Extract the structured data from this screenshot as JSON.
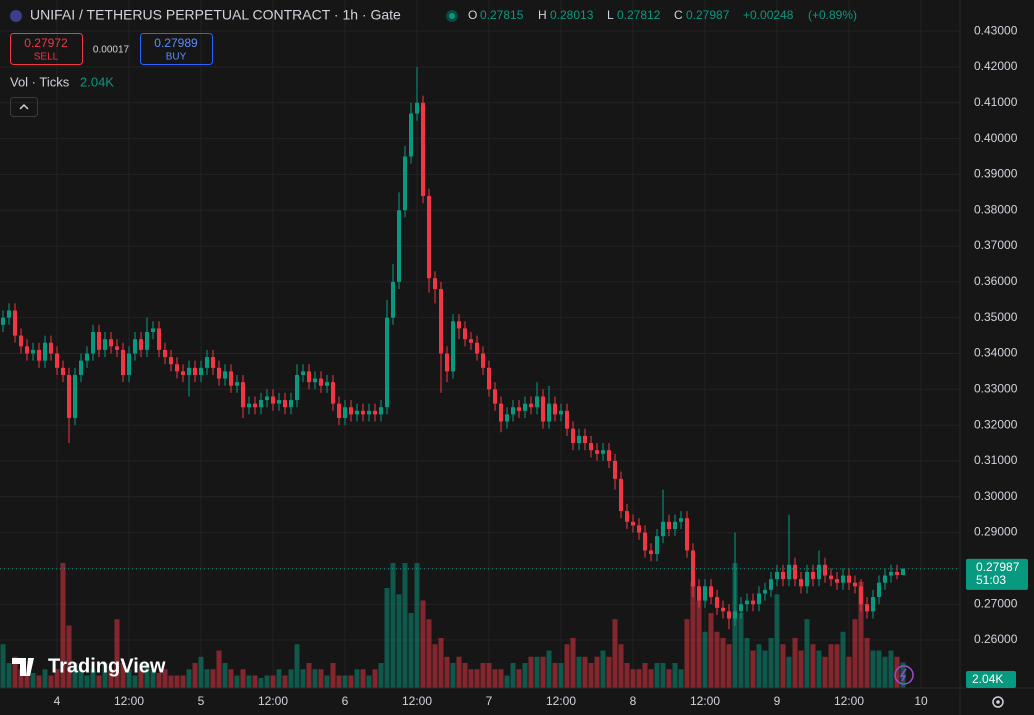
{
  "chart_data": {
    "type": "candlestick",
    "title": "UNIFAI / TETHERUS PERPETUAL CONTRACT · 1h · Gate",
    "ohlc_labels": [
      "O",
      "H",
      "L",
      "C"
    ],
    "change": "+0.00248",
    "change_pct": "(+0.89%)",
    "open": [
      0.348,
      0.35,
      0.352,
      0.345,
      0.342,
      0.34,
      0.341,
      0.338,
      0.343,
      0.34,
      0.336,
      0.334,
      0.322,
      0.334,
      0.338,
      0.34,
      0.346,
      0.341,
      0.344,
      0.342,
      0.341,
      0.334,
      0.34,
      0.344,
      0.341,
      0.346,
      0.347,
      0.341,
      0.339,
      0.337,
      0.335,
      0.334,
      0.336,
      0.334,
      0.336,
      0.339,
      0.336,
      0.333,
      0.335,
      0.331,
      0.332,
      0.325,
      0.326,
      0.325,
      0.327,
      0.328,
      0.326,
      0.327,
      0.325,
      0.327,
      0.334,
      0.335,
      0.332,
      0.333,
      0.331,
      0.332,
      0.326,
      0.322,
      0.325,
      0.323,
      0.324,
      0.323,
      0.324,
      0.323,
      0.325,
      0.35,
      0.36,
      0.38,
      0.395,
      0.407,
      0.41,
      0.384,
      0.361,
      0.358,
      0.34,
      0.335,
      0.349,
      0.347,
      0.344,
      0.343,
      0.34,
      0.336,
      0.33,
      0.326,
      0.321,
      0.323,
      0.325,
      0.324,
      0.326,
      0.325,
      0.328,
      0.321,
      0.326,
      0.323,
      0.324,
      0.319,
      0.315,
      0.317,
      0.315,
      0.313,
      0.312,
      0.313,
      0.31,
      0.305,
      0.296,
      0.293,
      0.292,
      0.29,
      0.285,
      0.284,
      0.289,
      0.293,
      0.291,
      0.293,
      0.294,
      0.285,
      0.275,
      0.271,
      0.275,
      0.272,
      0.269,
      0.268,
      0.266,
      0.268,
      0.27,
      0.271,
      0.27,
      0.273,
      0.274,
      0.277,
      0.279,
      0.277,
      0.281,
      0.277,
      0.275,
      0.279,
      0.277,
      0.281,
      0.278,
      0.277,
      0.276,
      0.278,
      0.276,
      0.275,
      0.27,
      0.268,
      0.272,
      0.276,
      0.278,
      0.279,
      0.27815
    ],
    "high": [
      0.352,
      0.354,
      0.354,
      0.347,
      0.344,
      0.343,
      0.343,
      0.345,
      0.345,
      0.342,
      0.338,
      0.336,
      0.336,
      0.34,
      0.342,
      0.348,
      0.348,
      0.346,
      0.346,
      0.344,
      0.343,
      0.342,
      0.346,
      0.346,
      0.35,
      0.349,
      0.349,
      0.343,
      0.341,
      0.339,
      0.337,
      0.338,
      0.338,
      0.338,
      0.341,
      0.341,
      0.338,
      0.337,
      0.337,
      0.334,
      0.334,
      0.328,
      0.328,
      0.329,
      0.33,
      0.33,
      0.329,
      0.329,
      0.329,
      0.337,
      0.337,
      0.337,
      0.335,
      0.335,
      0.334,
      0.334,
      0.328,
      0.327,
      0.327,
      0.326,
      0.326,
      0.326,
      0.326,
      0.327,
      0.355,
      0.365,
      0.385,
      0.398,
      0.41,
      0.42,
      0.412,
      0.386,
      0.363,
      0.36,
      0.342,
      0.351,
      0.351,
      0.349,
      0.346,
      0.345,
      0.342,
      0.338,
      0.332,
      0.328,
      0.325,
      0.327,
      0.327,
      0.328,
      0.328,
      0.332,
      0.33,
      0.331,
      0.328,
      0.326,
      0.326,
      0.321,
      0.319,
      0.319,
      0.317,
      0.315,
      0.315,
      0.315,
      0.312,
      0.307,
      0.298,
      0.295,
      0.294,
      0.292,
      0.287,
      0.291,
      0.302,
      0.295,
      0.295,
      0.296,
      0.296,
      0.287,
      0.277,
      0.277,
      0.277,
      0.274,
      0.271,
      0.27,
      0.29,
      0.272,
      0.273,
      0.273,
      0.275,
      0.276,
      0.279,
      0.281,
      0.281,
      0.295,
      0.283,
      0.279,
      0.281,
      0.281,
      0.285,
      0.283,
      0.28,
      0.279,
      0.28,
      0.28,
      0.278,
      0.277,
      0.272,
      0.274,
      0.278,
      0.28,
      0.281,
      0.281,
      0.28013
    ],
    "low": [
      0.346,
      0.348,
      0.343,
      0.34,
      0.338,
      0.338,
      0.336,
      0.336,
      0.338,
      0.334,
      0.332,
      0.315,
      0.32,
      0.332,
      0.336,
      0.338,
      0.339,
      0.339,
      0.34,
      0.339,
      0.332,
      0.332,
      0.338,
      0.339,
      0.339,
      0.344,
      0.339,
      0.337,
      0.335,
      0.333,
      0.332,
      0.328,
      0.332,
      0.332,
      0.334,
      0.334,
      0.331,
      0.331,
      0.329,
      0.329,
      0.322,
      0.323,
      0.323,
      0.323,
      0.325,
      0.324,
      0.324,
      0.323,
      0.323,
      0.325,
      0.332,
      0.33,
      0.33,
      0.329,
      0.329,
      0.324,
      0.32,
      0.32,
      0.321,
      0.321,
      0.321,
      0.321,
      0.321,
      0.321,
      0.323,
      0.348,
      0.358,
      0.378,
      0.393,
      0.405,
      0.382,
      0.357,
      0.354,
      0.329,
      0.332,
      0.333,
      0.344,
      0.342,
      0.341,
      0.338,
      0.334,
      0.328,
      0.324,
      0.318,
      0.319,
      0.321,
      0.322,
      0.322,
      0.323,
      0.323,
      0.319,
      0.319,
      0.321,
      0.321,
      0.317,
      0.313,
      0.313,
      0.313,
      0.311,
      0.31,
      0.31,
      0.308,
      0.302,
      0.294,
      0.291,
      0.29,
      0.288,
      0.283,
      0.282,
      0.282,
      0.287,
      0.289,
      0.289,
      0.291,
      0.283,
      0.272,
      0.269,
      0.269,
      0.27,
      0.267,
      0.266,
      0.263,
      0.264,
      0.266,
      0.268,
      0.268,
      0.268,
      0.271,
      0.272,
      0.275,
      0.275,
      0.275,
      0.275,
      0.273,
      0.273,
      0.275,
      0.275,
      0.276,
      0.275,
      0.274,
      0.274,
      0.274,
      0.273,
      0.268,
      0.266,
      0.266,
      0.27,
      0.274,
      0.276,
      0.277,
      0.27812
    ],
    "close": [
      0.35,
      0.352,
      0.345,
      0.342,
      0.34,
      0.341,
      0.338,
      0.343,
      0.34,
      0.336,
      0.334,
      0.322,
      0.334,
      0.338,
      0.34,
      0.346,
      0.341,
      0.344,
      0.342,
      0.341,
      0.334,
      0.34,
      0.344,
      0.341,
      0.346,
      0.347,
      0.341,
      0.339,
      0.337,
      0.335,
      0.334,
      0.336,
      0.334,
      0.336,
      0.339,
      0.336,
      0.333,
      0.335,
      0.331,
      0.332,
      0.325,
      0.326,
      0.325,
      0.327,
      0.328,
      0.326,
      0.327,
      0.325,
      0.327,
      0.334,
      0.335,
      0.332,
      0.333,
      0.331,
      0.332,
      0.326,
      0.322,
      0.325,
      0.323,
      0.324,
      0.323,
      0.324,
      0.323,
      0.325,
      0.35,
      0.36,
      0.38,
      0.395,
      0.407,
      0.41,
      0.384,
      0.361,
      0.358,
      0.34,
      0.335,
      0.349,
      0.347,
      0.344,
      0.343,
      0.34,
      0.336,
      0.33,
      0.326,
      0.321,
      0.323,
      0.325,
      0.324,
      0.326,
      0.325,
      0.328,
      0.321,
      0.326,
      0.323,
      0.324,
      0.319,
      0.315,
      0.317,
      0.315,
      0.313,
      0.312,
      0.313,
      0.31,
      0.305,
      0.296,
      0.293,
      0.292,
      0.29,
      0.285,
      0.284,
      0.289,
      0.293,
      0.291,
      0.293,
      0.294,
      0.285,
      0.275,
      0.271,
      0.275,
      0.272,
      0.269,
      0.268,
      0.266,
      0.268,
      0.27,
      0.271,
      0.27,
      0.273,
      0.274,
      0.277,
      0.279,
      0.277,
      0.281,
      0.277,
      0.275,
      0.279,
      0.277,
      0.281,
      0.278,
      0.277,
      0.276,
      0.278,
      0.276,
      0.275,
      0.27,
      0.268,
      0.272,
      0.276,
      0.278,
      0.279,
      0.27815,
      0.27987
    ],
    "volume": {
      "name": "Vol · Ticks",
      "last_label": "2.04K",
      "values": [
        3.5,
        2.0,
        2.5,
        1.5,
        1.0,
        1.2,
        1.0,
        1.5,
        1.0,
        1.5,
        10.0,
        5.0,
        2.0,
        1.5,
        1.0,
        1.5,
        1.0,
        2.0,
        1.5,
        5.5,
        2.0,
        1.5,
        1.0,
        1.5,
        2.0,
        1.5,
        1.2,
        1.5,
        1.0,
        1.0,
        1.0,
        1.5,
        2.0,
        2.5,
        1.5,
        1.5,
        3.0,
        2.0,
        1.5,
        1.0,
        1.5,
        1.0,
        1.0,
        0.8,
        1.0,
        1.0,
        1.5,
        1.0,
        1.5,
        3.5,
        1.5,
        2.0,
        1.5,
        1.5,
        1.0,
        2.0,
        1.0,
        1.0,
        1.0,
        1.5,
        1.5,
        1.0,
        1.5,
        2.0,
        8.0,
        10.0,
        7.5,
        10.0,
        6.0,
        10.0,
        7.0,
        5.5,
        3.5,
        4.0,
        2.5,
        2.0,
        2.5,
        2.0,
        1.5,
        1.5,
        2.0,
        2.0,
        1.5,
        1.5,
        1.0,
        2.0,
        1.5,
        2.0,
        2.5,
        2.5,
        2.5,
        3.0,
        2.0,
        2.0,
        3.5,
        4.0,
        2.5,
        2.5,
        2.0,
        2.5,
        3.0,
        2.5,
        5.5,
        3.5,
        2.0,
        1.5,
        1.5,
        2.0,
        1.5,
        2.0,
        2.0,
        1.5,
        2.0,
        1.5,
        5.5,
        8.5,
        7.0,
        4.5,
        6.0,
        4.5,
        4.0,
        3.5,
        10.0,
        6.0,
        4.0,
        3.0,
        3.5,
        3.0,
        4.0,
        7.5,
        3.5,
        2.5,
        4.0,
        3.0,
        5.5,
        3.5,
        3.0,
        2.5,
        3.5,
        3.5,
        4.5,
        2.5,
        5.5,
        8.5,
        4.0,
        3.0,
        3.0,
        2.5,
        3.0,
        2.5,
        2.04
      ]
    },
    "up_color": "#089981",
    "down_color": "#f23645",
    "ylim": [
      0.2466,
      0.4387
    ],
    "yticks": [
      {
        "value": 0.26,
        "label": "0.26000"
      },
      {
        "value": 0.27,
        "label": "0.27000"
      },
      {
        "value": 0.28,
        "label": "0.28000"
      },
      {
        "value": 0.29,
        "label": "0.29000"
      },
      {
        "value": 0.3,
        "label": "0.30000"
      },
      {
        "value": 0.31,
        "label": "0.31000"
      },
      {
        "value": 0.32,
        "label": "0.32000"
      },
      {
        "value": 0.33,
        "label": "0.33000"
      },
      {
        "value": 0.34,
        "label": "0.34000"
      },
      {
        "value": 0.35,
        "label": "0.35000"
      },
      {
        "value": 0.36,
        "label": "0.36000"
      },
      {
        "value": 0.37,
        "label": "0.37000"
      },
      {
        "value": 0.38,
        "label": "0.38000"
      },
      {
        "value": 0.39,
        "label": "0.39000"
      },
      {
        "value": 0.4,
        "label": "0.40000"
      },
      {
        "value": 0.41,
        "label": "0.41000"
      },
      {
        "value": 0.42,
        "label": "0.42000"
      },
      {
        "value": 0.43,
        "label": "0.43000"
      }
    ],
    "xlim": [
      -0.5,
      159.5
    ],
    "xticks": [
      {
        "value": 9,
        "label": "4"
      },
      {
        "value": 21,
        "label": "12:00"
      },
      {
        "value": 33,
        "label": "5"
      },
      {
        "value": 45,
        "label": "12:00"
      },
      {
        "value": 57,
        "label": "6"
      },
      {
        "value": 69,
        "label": "12:00"
      },
      {
        "value": 81,
        "label": "7"
      },
      {
        "value": 93,
        "label": "12:00"
      },
      {
        "value": 105,
        "label": "8"
      },
      {
        "value": 117,
        "label": "12:00"
      },
      {
        "value": 129,
        "label": "9"
      },
      {
        "value": 141,
        "label": "12:00"
      },
      {
        "value": 153,
        "label": "10"
      }
    ],
    "grid": true,
    "countdown": "51:03",
    "watermark": "TradingView"
  },
  "order_panel": {
    "sell_price": 0.27972,
    "sell_label": "SELL",
    "spread": 0.00017,
    "buy_price": 0.27989,
    "buy_label": "BUY"
  }
}
